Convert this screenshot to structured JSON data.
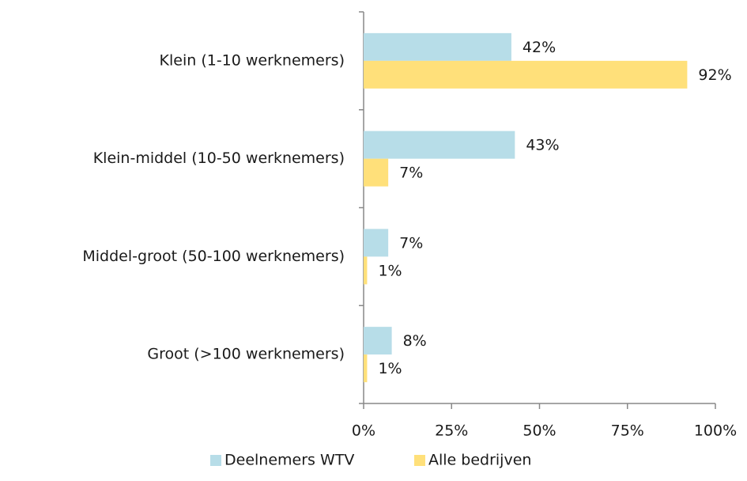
{
  "chart_data": {
    "type": "bar",
    "orientation": "horizontal",
    "categories": [
      "Klein (1-10 werknemers)",
      "Klein-middel (10-50 werknemers)",
      "Middel-groot (50-100 werknemers)",
      "Groot (>100 werknemers)"
    ],
    "series": [
      {
        "name": "Deelnemers WTV",
        "color": "#b7dde8",
        "values": [
          42,
          43,
          7,
          8
        ],
        "value_labels": [
          "42%",
          "43%",
          "7%",
          "8%"
        ]
      },
      {
        "name": "Alle bedrijven",
        "color": "#ffe07a",
        "values": [
          92,
          7,
          1,
          1
        ],
        "value_labels": [
          "92%",
          "7%",
          "1%",
          "1%"
        ]
      }
    ],
    "xlim": [
      0,
      100
    ],
    "xticks": [
      {
        "value": 0,
        "label": "0%"
      },
      {
        "value": 25,
        "label": "25%"
      },
      {
        "value": 50,
        "label": "50%"
      },
      {
        "value": 75,
        "label": "75%"
      },
      {
        "value": 100,
        "label": "100%"
      }
    ],
    "legend": "bottom"
  }
}
